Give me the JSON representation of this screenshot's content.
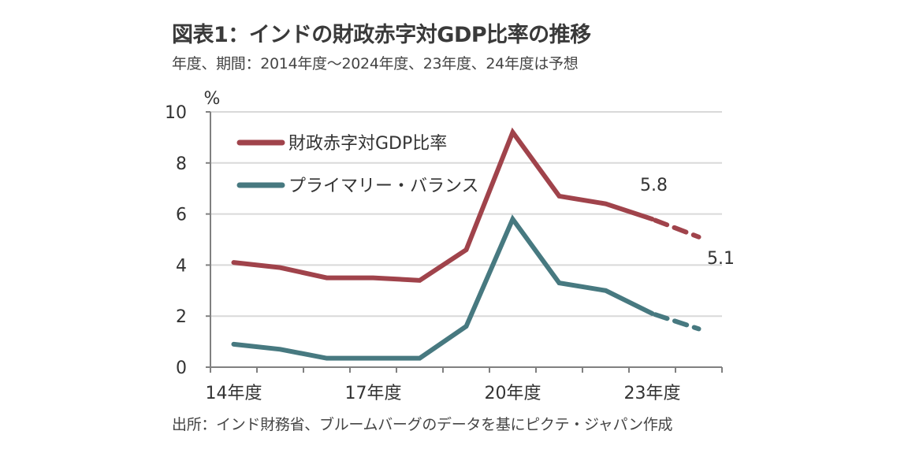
{
  "title": "図表1：インドの財政赤字対GDP比率の推移",
  "subtitle": "年度、期間：2014年度～2024年度、23年度、24年度は予想",
  "source": "出所：インド財務省、ブルームバーグのデータを基にピクテ・ジャパン作成",
  "colors": {
    "deficit": "#a0434b",
    "primary": "#477980",
    "grid": "#d9d9d9",
    "axis": "#808080"
  },
  "chart_data": {
    "type": "line",
    "title": "図表1：インドの財政赤字対GDP比率の推移",
    "xlabel": "",
    "ylabel": "%",
    "ylim": [
      0,
      10
    ],
    "yticks": [
      0,
      2,
      4,
      6,
      8,
      10
    ],
    "x": [
      "14年度",
      "15年度",
      "16年度",
      "17年度",
      "18年度",
      "19年度",
      "20年度",
      "21年度",
      "22年度",
      "23年度",
      "24年度"
    ],
    "xtick_labels": [
      "14年度",
      "17年度",
      "20年度",
      "23年度"
    ],
    "grid": true,
    "legend_position": "top-left",
    "forecast_from": "23年度",
    "series": [
      {
        "name": "財政赤字対GDP比率",
        "color": "#a0434b",
        "values": [
          4.1,
          3.9,
          3.5,
          3.5,
          3.4,
          4.6,
          9.2,
          6.7,
          6.4,
          5.8,
          5.1
        ]
      },
      {
        "name": "プライマリー・バランス",
        "color": "#477980",
        "values": [
          0.9,
          0.7,
          0.35,
          0.35,
          0.35,
          1.6,
          5.8,
          3.3,
          3.0,
          2.1,
          1.5
        ]
      }
    ],
    "annotations": [
      {
        "series": 0,
        "x": "23年度",
        "text": "5.8"
      },
      {
        "series": 0,
        "x": "24年度",
        "text": "5.1"
      }
    ]
  }
}
